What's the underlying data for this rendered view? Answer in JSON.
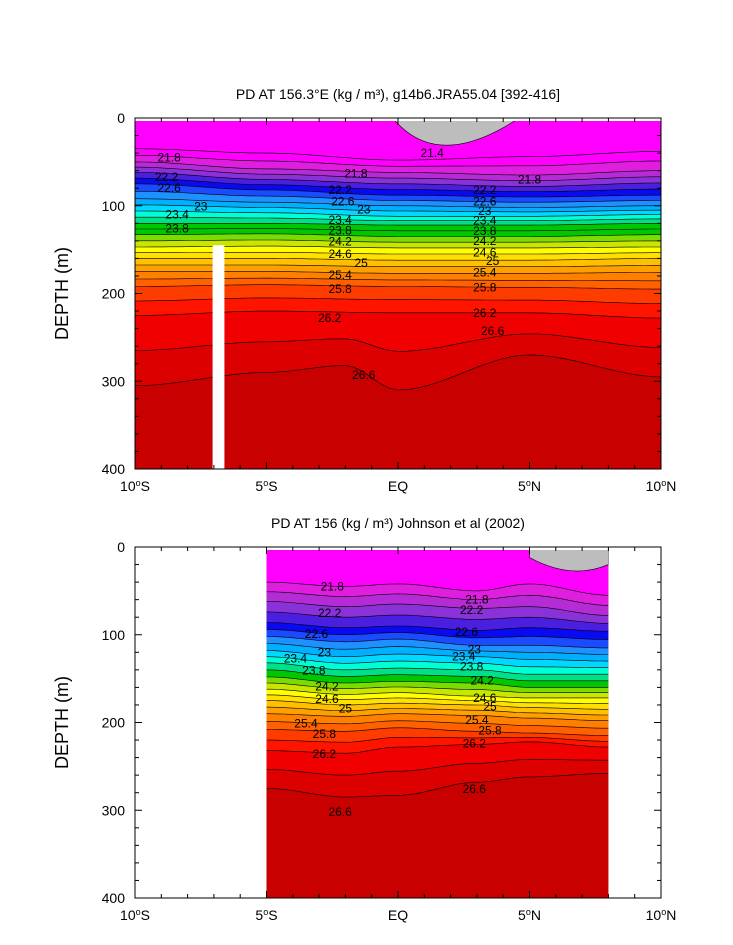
{
  "chart_data": [
    {
      "type": "contour",
      "title": "PD AT 156.3°E (kg / m³), g14b6.JRA55.04 [392-416]",
      "ylabel": "DEPTH (m)",
      "xlim": [
        -10,
        10
      ],
      "ylim": [
        0,
        400
      ],
      "y_inverted": true,
      "x_ticks": [
        -10,
        -5,
        0,
        5,
        10
      ],
      "x_tick_labels": [
        "10°S",
        "5°S",
        "EQ",
        "5°N",
        "10°N"
      ],
      "y_ticks": [
        0,
        100,
        200,
        300,
        400
      ],
      "y_tick_labels": [
        "0",
        "100",
        "200",
        "300",
        "400"
      ],
      "data_extent_x": [
        -10,
        10
      ],
      "mask_column": {
        "x_range": [
          -7.05,
          -6.6
        ],
        "depth_range": [
          145,
          400
        ]
      },
      "contour_levels": [
        21.4,
        21.8,
        22.2,
        22.6,
        23,
        23.4,
        23.8,
        24.2,
        24.6,
        25,
        25.4,
        25.8,
        26.2,
        26.6
      ],
      "contour_depths": [
        {
          "level": 21.4,
          "points": [
            [
              -10,
              35
            ],
            [
              -5,
              40
            ],
            [
              0,
              48
            ],
            [
              5,
              44
            ],
            [
              10,
              38
            ]
          ]
        },
        {
          "level": 21.8,
          "points": [
            [
              -10,
              50
            ],
            [
              -5,
              58
            ],
            [
              0,
              62
            ],
            [
              5,
              65
            ],
            [
              10,
              60
            ]
          ]
        },
        {
          "level": 22.2,
          "points": [
            [
              -10,
              62
            ],
            [
              -5,
              70
            ],
            [
              0,
              75
            ],
            [
              5,
              78
            ],
            [
              10,
              74
            ]
          ]
        },
        {
          "level": 22.6,
          "points": [
            [
              -10,
              75
            ],
            [
              -5,
              82
            ],
            [
              0,
              88
            ],
            [
              5,
              90
            ],
            [
              10,
              88
            ]
          ]
        },
        {
          "level": 23,
          "points": [
            [
              -10,
              92
            ],
            [
              -5,
              96
            ],
            [
              0,
              100
            ],
            [
              5,
              102
            ],
            [
              10,
              100
            ]
          ]
        },
        {
          "level": 23.4,
          "points": [
            [
              -10,
              106
            ],
            [
              -5,
              108
            ],
            [
              0,
              112
            ],
            [
              5,
              112
            ],
            [
              10,
              110
            ]
          ]
        },
        {
          "level": 23.8,
          "points": [
            [
              -10,
              120
            ],
            [
              -5,
              120
            ],
            [
              0,
              122
            ],
            [
              5,
              122
            ],
            [
              10,
              120
            ]
          ]
        },
        {
          "level": 24.2,
          "points": [
            [
              -10,
              133
            ],
            [
              -5,
              132
            ],
            [
              0,
              135
            ],
            [
              5,
              135
            ],
            [
              10,
              133
            ]
          ]
        },
        {
          "level": 24.6,
          "points": [
            [
              -10,
              147
            ],
            [
              -5,
              146
            ],
            [
              0,
              148
            ],
            [
              5,
              148
            ],
            [
              10,
              147
            ]
          ]
        },
        {
          "level": 25,
          "points": [
            [
              -10,
              160
            ],
            [
              -5,
              160
            ],
            [
              0,
              162
            ],
            [
              5,
              162
            ],
            [
              10,
              160
            ]
          ]
        },
        {
          "level": 25.4,
          "points": [
            [
              -10,
              175
            ],
            [
              -5,
              175
            ],
            [
              0,
              177
            ],
            [
              5,
              177
            ],
            [
              10,
              176
            ]
          ]
        },
        {
          "level": 25.8,
          "points": [
            [
              -10,
              192
            ],
            [
              -5,
              190
            ],
            [
              0,
              192
            ],
            [
              5,
              193
            ],
            [
              10,
              195
            ]
          ]
        },
        {
          "level": 26.2,
          "points": [
            [
              -10,
              225
            ],
            [
              -5,
              220
            ],
            [
              0,
              222
            ],
            [
              5,
              222
            ],
            [
              10,
              228
            ]
          ]
        },
        {
          "level": 26.6,
          "points": [
            [
              -10,
              305
            ],
            [
              -5,
              290
            ],
            [
              -2,
              282
            ],
            [
              0,
              310
            ],
            [
              5,
              270
            ],
            [
              10,
              295
            ]
          ]
        }
      ],
      "labels": [
        {
          "text": "21.4",
          "x": 1.3,
          "y": 40
        },
        {
          "text": "21.8",
          "x": -8.7,
          "y": 45
        },
        {
          "text": "21.8",
          "x": -1.6,
          "y": 63
        },
        {
          "text": "21.8",
          "x": 5.0,
          "y": 70
        },
        {
          "text": "22.2",
          "x": -8.8,
          "y": 67
        },
        {
          "text": "22.6",
          "x": -8.7,
          "y": 80
        },
        {
          "text": "22.2",
          "x": -2.2,
          "y": 82
        },
        {
          "text": "22.6",
          "x": -2.1,
          "y": 95
        },
        {
          "text": "23",
          "x": -7.5,
          "y": 101
        },
        {
          "text": "23",
          "x": -1.3,
          "y": 104
        },
        {
          "text": "23.4",
          "x": -8.4,
          "y": 110
        },
        {
          "text": "23.8",
          "x": -8.4,
          "y": 126
        },
        {
          "text": "23.4",
          "x": -2.2,
          "y": 116
        },
        {
          "text": "23.8",
          "x": -2.2,
          "y": 128
        },
        {
          "text": "24.2",
          "x": -2.2,
          "y": 141
        },
        {
          "text": "24.6",
          "x": -2.2,
          "y": 155
        },
        {
          "text": "25",
          "x": -1.4,
          "y": 165
        },
        {
          "text": "25.4",
          "x": -2.2,
          "y": 179
        },
        {
          "text": "25.8",
          "x": -2.2,
          "y": 195
        },
        {
          "text": "26.2",
          "x": -2.6,
          "y": 228
        },
        {
          "text": "26.6",
          "x": -1.3,
          "y": 293
        },
        {
          "text": "22.2",
          "x": 3.3,
          "y": 82
        },
        {
          "text": "22.6",
          "x": 3.3,
          "y": 95
        },
        {
          "text": "23",
          "x": 3.3,
          "y": 106
        },
        {
          "text": "23.4",
          "x": 3.3,
          "y": 117
        },
        {
          "text": "23.8",
          "x": 3.3,
          "y": 129
        },
        {
          "text": "24.2",
          "x": 3.3,
          "y": 140
        },
        {
          "text": "24.6",
          "x": 3.3,
          "y": 153
        },
        {
          "text": "25",
          "x": 3.6,
          "y": 163
        },
        {
          "text": "25.4",
          "x": 3.3,
          "y": 176
        },
        {
          "text": "25.8",
          "x": 3.3,
          "y": 193
        },
        {
          "text": "26.2",
          "x": 3.3,
          "y": 222
        },
        {
          "text": "26.6",
          "x": 3.6,
          "y": 243
        }
      ]
    },
    {
      "type": "contour",
      "title": "PD AT 156 (kg / m³) Johnson et al (2002)",
      "ylabel": "DEPTH (m)",
      "xlim": [
        -10,
        10
      ],
      "ylim": [
        0,
        400
      ],
      "y_inverted": true,
      "x_ticks": [
        -10,
        -5,
        0,
        5,
        10
      ],
      "x_tick_labels": [
        "10°S",
        "5°S",
        "EQ",
        "5°N",
        "10°N"
      ],
      "y_ticks": [
        0,
        100,
        200,
        300,
        400
      ],
      "y_tick_labels": [
        "0",
        "100",
        "200",
        "300",
        "400"
      ],
      "data_extent_x": [
        -5,
        8
      ],
      "contour_levels": [
        21.8,
        22.2,
        22.6,
        23,
        23.4,
        23.8,
        24.2,
        24.6,
        25,
        25.4,
        25.8,
        26.2,
        26.6
      ],
      "contour_depths": [
        {
          "level": 21.8,
          "points": [
            [
              -5,
              40
            ],
            [
              -2,
              45
            ],
            [
              0,
              42
            ],
            [
              3,
              50
            ],
            [
              5,
              42
            ],
            [
              8,
              55
            ]
          ]
        },
        {
          "level": 22.2,
          "points": [
            [
              -5,
              62
            ],
            [
              -2,
              68
            ],
            [
              0,
              65
            ],
            [
              3,
              70
            ],
            [
              5,
              68
            ],
            [
              8,
              78
            ]
          ]
        },
        {
          "level": 22.6,
          "points": [
            [
              -5,
              86
            ],
            [
              -2,
              92
            ],
            [
              0,
              90
            ],
            [
              3,
              95
            ],
            [
              5,
              92
            ],
            [
              8,
              96
            ]
          ]
        },
        {
          "level": 23,
          "points": [
            [
              -5,
              102
            ],
            [
              -2,
              108
            ],
            [
              0,
              105
            ],
            [
              3,
              112
            ],
            [
              5,
              112
            ],
            [
              8,
              115
            ]
          ]
        },
        {
          "level": 23.4,
          "points": [
            [
              -5,
              118
            ],
            [
              -2,
              125
            ],
            [
              0,
              122
            ],
            [
              3,
              125
            ],
            [
              5,
              128
            ],
            [
              8,
              130
            ]
          ]
        },
        {
          "level": 23.8,
          "points": [
            [
              -5,
              132
            ],
            [
              -2,
              140
            ],
            [
              0,
              138
            ],
            [
              3,
              140
            ],
            [
              5,
              145
            ],
            [
              8,
              145
            ]
          ]
        },
        {
          "level": 24.2,
          "points": [
            [
              -5,
              148
            ],
            [
              -2,
              155
            ],
            [
              0,
              153
            ],
            [
              3,
              155
            ],
            [
              5,
              160
            ],
            [
              8,
              160
            ]
          ]
        },
        {
          "level": 24.6,
          "points": [
            [
              -5,
              162
            ],
            [
              -2,
              168
            ],
            [
              0,
              166
            ],
            [
              3,
              170
            ],
            [
              5,
              172
            ],
            [
              8,
              172
            ]
          ]
        },
        {
          "level": 25,
          "points": [
            [
              -5,
              175
            ],
            [
              -2,
              180
            ],
            [
              0,
              178
            ],
            [
              3,
              180
            ],
            [
              5,
              183
            ],
            [
              8,
              185
            ]
          ]
        },
        {
          "level": 25.4,
          "points": [
            [
              -5,
              190
            ],
            [
              -2,
              193
            ],
            [
              0,
              190
            ],
            [
              3,
              192
            ],
            [
              5,
              195
            ],
            [
              8,
              198
            ]
          ]
        },
        {
          "level": 25.8,
          "points": [
            [
              -5,
              208
            ],
            [
              -2,
              210
            ],
            [
              0,
              206
            ],
            [
              3,
              210
            ],
            [
              5,
              212
            ],
            [
              8,
              215
            ]
          ]
        },
        {
          "level": 26.2,
          "points": [
            [
              -5,
              232
            ],
            [
              -2,
              235
            ],
            [
              0,
              228
            ],
            [
              3,
              225
            ],
            [
              5,
              222
            ],
            [
              8,
              228
            ]
          ]
        },
        {
          "level": 26.6,
          "points": [
            [
              -5,
              275
            ],
            [
              -2,
              285
            ],
            [
              0,
              283
            ],
            [
              3,
              268
            ],
            [
              5,
              262
            ],
            [
              8,
              258
            ]
          ]
        }
      ],
      "labels": [
        {
          "text": "21.8",
          "x": -2.5,
          "y": 45
        },
        {
          "text": "21.8",
          "x": 3.0,
          "y": 60
        },
        {
          "text": "22.2",
          "x": -2.6,
          "y": 75
        },
        {
          "text": "22.2",
          "x": 2.8,
          "y": 72
        },
        {
          "text": "22.6",
          "x": -3.1,
          "y": 99
        },
        {
          "text": "22.6",
          "x": 2.6,
          "y": 97
        },
        {
          "text": "23",
          "x": -2.8,
          "y": 120
        },
        {
          "text": "23",
          "x": 2.9,
          "y": 117
        },
        {
          "text": "23.4",
          "x": -3.9,
          "y": 127
        },
        {
          "text": "23.4",
          "x": 2.5,
          "y": 125
        },
        {
          "text": "23.8",
          "x": -3.2,
          "y": 141
        },
        {
          "text": "23.8",
          "x": 2.8,
          "y": 136
        },
        {
          "text": "24.2",
          "x": -2.7,
          "y": 159
        },
        {
          "text": "24.2",
          "x": 3.2,
          "y": 152
        },
        {
          "text": "24.6",
          "x": -2.7,
          "y": 173
        },
        {
          "text": "24.6",
          "x": 3.3,
          "y": 172
        },
        {
          "text": "25",
          "x": -2.0,
          "y": 184
        },
        {
          "text": "25",
          "x": 3.5,
          "y": 182
        },
        {
          "text": "25.4",
          "x": -3.5,
          "y": 201
        },
        {
          "text": "25.4",
          "x": 3.0,
          "y": 197
        },
        {
          "text": "25.8",
          "x": -2.8,
          "y": 213
        },
        {
          "text": "25.8",
          "x": 3.5,
          "y": 209
        },
        {
          "text": "26.2",
          "x": -2.8,
          "y": 236
        },
        {
          "text": "26.2",
          "x": 2.9,
          "y": 224
        },
        {
          "text": "26.6",
          "x": -2.2,
          "y": 302
        },
        {
          "text": "26.6",
          "x": 2.9,
          "y": 276
        }
      ]
    }
  ]
}
